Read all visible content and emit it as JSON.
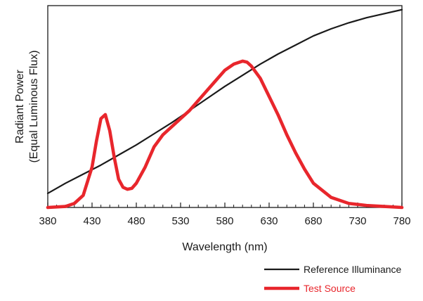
{
  "chart_data": {
    "type": "line",
    "title": "",
    "xlabel": "Wavelength (nm)",
    "ylabel_lines": [
      "Radiant Power",
      "(Equal Luminous Flux)"
    ],
    "xlim": [
      380,
      780
    ],
    "ylim": [
      0,
      1
    ],
    "grid": false,
    "y_tick_labels": false,
    "x_ticks": {
      "major": [
        380,
        430,
        480,
        530,
        580,
        630,
        680,
        730,
        780
      ],
      "minor_step": 10
    },
    "legend": {
      "placement": "bottom-right"
    },
    "series": [
      {
        "name": "Reference Illuminance",
        "color": "#1a1a1a",
        "style": "thin",
        "x": [
          380,
          400,
          420,
          440,
          460,
          480,
          500,
          520,
          540,
          560,
          580,
          600,
          620,
          640,
          660,
          680,
          700,
          720,
          740,
          760,
          780
        ],
        "y": [
          0.07,
          0.12,
          0.165,
          0.21,
          0.26,
          0.31,
          0.365,
          0.42,
          0.48,
          0.54,
          0.6,
          0.655,
          0.71,
          0.76,
          0.805,
          0.85,
          0.885,
          0.915,
          0.94,
          0.96,
          0.98
        ]
      },
      {
        "name": "Test Source",
        "color": "#e8262c",
        "style": "thick",
        "x": [
          380,
          400,
          410,
          420,
          430,
          435,
          440,
          445,
          450,
          455,
          460,
          465,
          470,
          475,
          480,
          490,
          500,
          510,
          520,
          530,
          540,
          550,
          560,
          570,
          580,
          590,
          600,
          605,
          610,
          620,
          630,
          640,
          650,
          660,
          670,
          680,
          700,
          720,
          740,
          760,
          780
        ],
        "y": [
          0.0,
          0.005,
          0.02,
          0.06,
          0.2,
          0.33,
          0.44,
          0.46,
          0.38,
          0.25,
          0.14,
          0.1,
          0.09,
          0.095,
          0.12,
          0.2,
          0.3,
          0.36,
          0.4,
          0.44,
          0.48,
          0.53,
          0.58,
          0.63,
          0.68,
          0.71,
          0.725,
          0.72,
          0.7,
          0.64,
          0.55,
          0.46,
          0.36,
          0.27,
          0.19,
          0.12,
          0.05,
          0.02,
          0.01,
          0.005,
          0.0
        ]
      }
    ]
  }
}
